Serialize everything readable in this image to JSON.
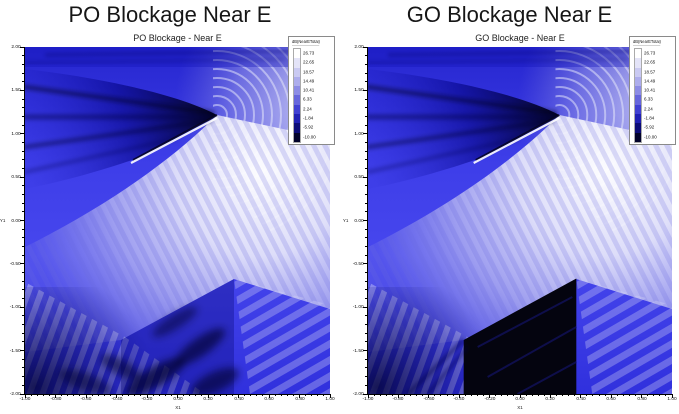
{
  "plots": [
    {
      "title": "PO Blockage Near E",
      "plot_title": "PO Blockage - Near E",
      "x_axis_label": "X1",
      "y_axis_label": "Y1",
      "x_ticks": [
        "-1.00",
        "-0.80",
        "-0.60",
        "-0.40",
        "-0.20",
        "0.00",
        "0.20",
        "0.40",
        "0.60",
        "0.80",
        "1.00"
      ],
      "y_ticks": [
        "2.00",
        "1.50",
        "1.00",
        "0.50",
        "0.00",
        "-0.50",
        "-1.00",
        "-1.50",
        "-2.00"
      ]
    },
    {
      "title": "GO Blockage Near E",
      "plot_title": "GO Blockage - Near E",
      "x_axis_label": "X1",
      "y_axis_label": "Y1",
      "x_ticks": [
        "-1.00",
        "-0.80",
        "-0.60",
        "-0.40",
        "-0.20",
        "0.00",
        "0.20",
        "0.40",
        "0.60",
        "0.80",
        "1.00"
      ],
      "y_ticks": [
        "2.00",
        "1.50",
        "1.00",
        "0.50",
        "0.00",
        "-0.50",
        "-1.00",
        "-1.50",
        "-2.00"
      ]
    }
  ],
  "legend": {
    "title": "dB(NearETotal)",
    "values": [
      "26.73",
      "22.65",
      "18.57",
      "14.49",
      "10.41",
      "6.33",
      "2.24",
      "-1.84",
      "-5.92",
      "-10.00"
    ],
    "colors": [
      "#ffffff",
      "#e4e4f8",
      "#cacaf2",
      "#adadec",
      "#8c8ce5",
      "#6666dc",
      "#4040d2",
      "#2020b4",
      "#0c0c78",
      "#02022a"
    ]
  },
  "colors": {
    "field_mid_blue": "#4444ee",
    "field_deep_blue": "#1515cc",
    "field_bright": "#f2f2fc",
    "shadow_dark": "#000018",
    "go_shadow_black": "#04040f",
    "background": "#ffffff"
  },
  "chart_data": [
    {
      "type": "heatmap",
      "title": "PO Blockage - Near E",
      "suptitle": "PO Blockage Near E",
      "xlabel": "X1",
      "ylabel": "Y1",
      "xlim": [
        -1.0,
        1.0
      ],
      "ylim": [
        -2.0,
        2.0
      ],
      "x_tick_step": 0.2,
      "y_tick_step": 0.5,
      "grid": false,
      "legend_position": "top-right",
      "colorbar": {
        "title": "dB(NearETotal)",
        "ticks": [
          26.73,
          22.65,
          18.57,
          14.49,
          10.41,
          6.33,
          2.24,
          -1.84,
          -5.92,
          -10.0
        ],
        "max": 26.73,
        "min": -10.0,
        "colormap": "white (max) -> blue -> near-black (min)"
      },
      "field_features": [
        "tilted plate edge from approx (-0.28, 0.73) to tip (0.26, 1.22)",
        "bright fan ~20-27 dB radiating from plate tip toward lower left with interference fringe stripes",
        "dark geometric shadow wedge (< -5 dB) above the plate toward the upper-left edge, with streaks converging at the tip",
        "concentric diffraction wavefront arcs centered at the plate tip in the upper right",
        "shadow zone behind plate (x -0.37..0.37, y below -0.67) filled with chaotic diffraction fringes (PO keeps diffracted field)"
      ]
    },
    {
      "type": "heatmap",
      "title": "GO Blockage - Near E",
      "suptitle": "GO Blockage Near E",
      "xlabel": "X1",
      "ylabel": "Y1",
      "xlim": [
        -1.0,
        1.0
      ],
      "ylim": [
        -2.0,
        2.0
      ],
      "x_tick_step": 0.2,
      "y_tick_step": 0.5,
      "grid": false,
      "legend_position": "top-right",
      "colorbar": {
        "title": "dB(NearETotal)",
        "ticks": [
          26.73,
          22.65,
          18.57,
          14.49,
          10.41,
          6.33,
          2.24,
          -1.84,
          -5.92,
          -10.0
        ],
        "max": 26.73,
        "min": -10.0,
        "colormap": "white (max) -> blue -> near-black (min)"
      },
      "field_features": [
        "tilted plate edge from approx (-0.28, 0.73) to tip (0.26, 1.22)",
        "bright fan ~20-27 dB radiating from plate tip toward lower left with interference fringe stripes",
        "dark geometric shadow wedge (< -5 dB) above the plate toward the upper-left edge",
        "concentric wavefront arcs centered at the plate tip in the upper right",
        "sharp pure-black geometric shadow polygon at the -10 dB floor with vertices (-0.37,-2.00), (-0.37,-1.38), (0.37,-0.67), (0.37,-2.00) — GO predicts zero field in shadow"
      ]
    }
  ]
}
